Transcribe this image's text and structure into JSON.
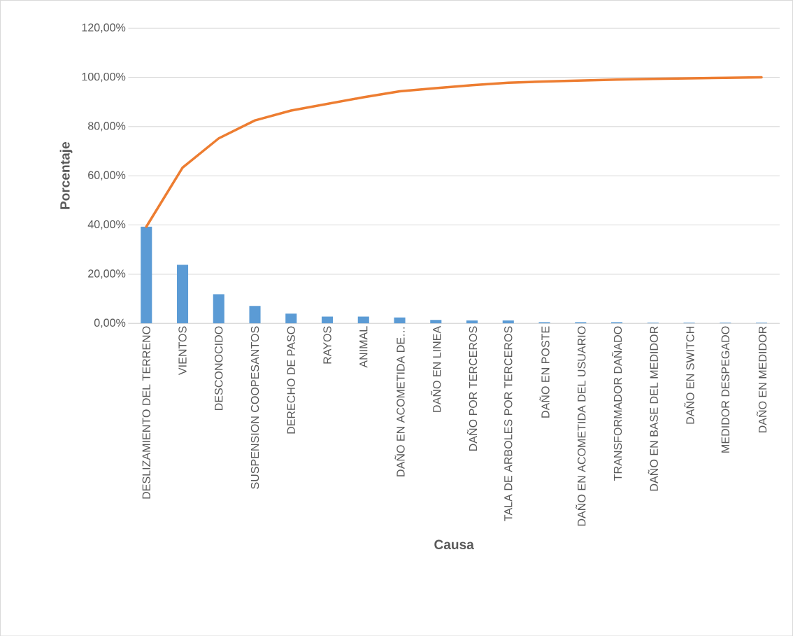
{
  "chart_data": {
    "type": "bar",
    "xlabel": "Causa",
    "ylabel": "Porcentaje",
    "categories": [
      "DESLIZAMIENTO DEL TERRENO",
      "VIENTOS",
      "DESCONOCIDO",
      "SUSPENSION COOPESANTOS",
      "DERECHO DE PASO",
      "RAYOS",
      "ANIMAL",
      "DAÑO EN ACOMETIDA DE…",
      "DAÑO EN LINEA",
      "DAÑO POR TERCEROS",
      "TALA DE ARBOLES POR TERCEROS",
      "DAÑO EN POSTE",
      "DAÑO EN ACOMETIDA DEL USUARIO",
      "TRANSFORMADOR DAÑADO",
      "DAÑO EN BASE DEL MEDIDOR",
      "DAÑO EN SWITCH",
      "MEDIDOR DESPEGADO",
      "DAÑO EN MEDIDOR"
    ],
    "series": [
      {
        "color": "#5b9bd5",
        "values": [
          39.3,
          23.8,
          11.9,
          7.1,
          4.0,
          2.8,
          2.8,
          2.4,
          1.4,
          1.2,
          1.2,
          0.5,
          0.5,
          0.5,
          0.3,
          0.3,
          0.3,
          0.3
        ]
      },
      {
        "type": "line",
        "color": "#ed7d31",
        "values": [
          39.3,
          63.3,
          75.2,
          82.5,
          86.5,
          89.2,
          91.9,
          94.3,
          95.6,
          96.8,
          97.8,
          98.3,
          98.7,
          99.1,
          99.4,
          99.6,
          99.8,
          100
        ]
      }
    ],
    "ylim": [
      0,
      120
    ],
    "yticks": [
      {
        "value": 0,
        "label": "0,00%"
      },
      {
        "value": 20,
        "label": "20,00%"
      },
      {
        "value": 40,
        "label": "40,00%"
      },
      {
        "value": 60,
        "label": "60,00%"
      },
      {
        "value": 80,
        "label": "80,00%"
      },
      {
        "value": 100,
        "label": "100,00%"
      },
      {
        "value": 120,
        "label": "120,00%"
      }
    ],
    "grid": "y",
    "legend": false
  }
}
